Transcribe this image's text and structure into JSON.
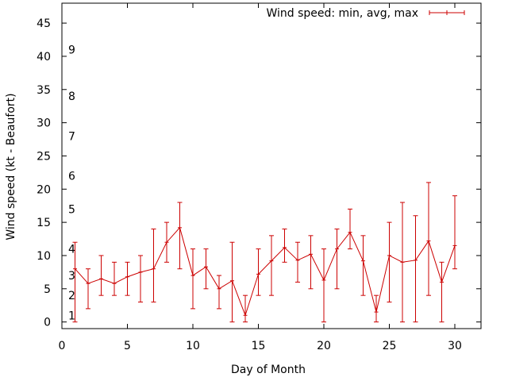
{
  "chart_data": {
    "type": "line",
    "title": "",
    "xlabel": "Day of Month",
    "ylabel": "Wind speed (kt - Beaufort)",
    "xlim": [
      0,
      32
    ],
    "ylim": [
      -1,
      48
    ],
    "x_ticks": [
      0,
      5,
      10,
      15,
      20,
      25,
      30
    ],
    "y_ticks": [
      0,
      5,
      10,
      15,
      20,
      25,
      30,
      35,
      40,
      45
    ],
    "grid": false,
    "legend_position": "top-right",
    "series": [
      {
        "name": "Wind speed: min, avg, max",
        "color": "#cc0000",
        "x": [
          1,
          2,
          3,
          4,
          5,
          6,
          7,
          8,
          9,
          10,
          11,
          12,
          13,
          14,
          15,
          16,
          17,
          18,
          19,
          20,
          21,
          22,
          23,
          24,
          25,
          26,
          27,
          28,
          29,
          30
        ],
        "avg": [
          8,
          5.8,
          6.5,
          5.8,
          6.8,
          7.5,
          8,
          12,
          14.2,
          7,
          8.3,
          5,
          6.2,
          1,
          7.2,
          9.2,
          11.2,
          9.3,
          10.2,
          6.3,
          11,
          13.5,
          9.2,
          1.5,
          10,
          9,
          9.3,
          12.2,
          6,
          11.5
        ],
        "min": [
          0,
          2,
          4,
          4,
          4,
          3,
          3,
          9,
          8,
          2,
          5,
          2,
          0,
          0,
          4,
          4,
          9,
          6,
          5,
          0,
          5,
          11,
          4,
          0,
          3,
          0,
          0,
          4,
          0,
          8
        ],
        "max": [
          12,
          8,
          10,
          9,
          9,
          10,
          14,
          15,
          18,
          11,
          11,
          7,
          12,
          4,
          11,
          13,
          14,
          12,
          13,
          11,
          14,
          17,
          13,
          4,
          15,
          18,
          16,
          21,
          9,
          19
        ]
      }
    ],
    "annotations": [
      {
        "text": "1",
        "y": 1
      },
      {
        "text": "2",
        "y": 4
      },
      {
        "text": "3",
        "y": 7
      },
      {
        "text": "4",
        "y": 11
      },
      {
        "text": "5",
        "y": 17
      },
      {
        "text": "6",
        "y": 22
      },
      {
        "text": "7",
        "y": 28
      },
      {
        "text": "8",
        "y": 34
      },
      {
        "text": "9",
        "y": 41
      }
    ]
  }
}
